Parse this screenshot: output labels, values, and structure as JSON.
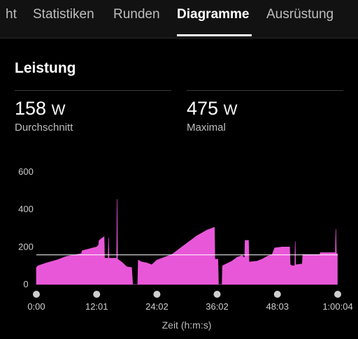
{
  "tabs": [
    {
      "label": "ht",
      "active": false
    },
    {
      "label": "Statistiken",
      "active": false
    },
    {
      "label": "Runden",
      "active": false
    },
    {
      "label": "Diagramme",
      "active": true
    },
    {
      "label": "Ausrüstung",
      "active": false
    }
  ],
  "card": {
    "title": "Leistung"
  },
  "stats": {
    "average": {
      "value": "158",
      "unit": "W",
      "label": "Durchschnitt"
    },
    "maximum": {
      "value": "475",
      "unit": "W",
      "label": "Maximal"
    }
  },
  "colors": {
    "series": "#e957d9",
    "background": "#000000",
    "reference_line": "#ffffff"
  },
  "chart_data": {
    "type": "area",
    "xlabel": "Zeit (h:m:s)",
    "ylabel": "",
    "ylim": [
      0,
      600
    ],
    "yticks": [
      0,
      200,
      400,
      600
    ],
    "xtick_labels": [
      "0:00",
      "12:01",
      "24:02",
      "36:02",
      "48:03",
      "1:00:04"
    ],
    "xtick_minutes": [
      0,
      12.02,
      24.03,
      36.03,
      48.05,
      60.07
    ],
    "xlim_minutes": [
      0,
      60.07
    ],
    "reference_line": 158,
    "series": [
      {
        "points": [
          [
            0,
            90
          ],
          [
            0.3,
            100
          ],
          [
            2,
            115
          ],
          [
            4,
            130
          ],
          [
            6,
            150
          ],
          [
            8,
            160
          ],
          [
            9,
            165
          ],
          [
            9.1,
            180
          ],
          [
            12,
            200
          ],
          [
            12.4,
            210
          ],
          [
            12.5,
            235
          ],
          [
            13,
            245
          ],
          [
            13.5,
            255
          ],
          [
            13.6,
            140
          ],
          [
            14.3,
            140
          ],
          [
            14.4,
            250
          ],
          [
            14.5,
            140
          ],
          [
            16,
            140
          ],
          [
            16.1,
            455
          ],
          [
            16.2,
            135
          ],
          [
            17,
            120
          ],
          [
            18,
            95
          ],
          [
            19,
            90
          ],
          [
            19.2,
            0
          ],
          [
            20.2,
            0
          ],
          [
            20.3,
            130
          ],
          [
            21,
            120
          ],
          [
            22,
            115
          ],
          [
            23,
            105
          ],
          [
            24,
            130
          ],
          [
            25,
            140
          ],
          [
            26,
            150
          ],
          [
            27,
            160
          ],
          [
            28,
            180
          ],
          [
            29,
            200
          ],
          [
            30,
            220
          ],
          [
            31,
            240
          ],
          [
            32,
            260
          ],
          [
            33,
            275
          ],
          [
            34,
            290
          ],
          [
            35,
            300
          ],
          [
            35.5,
            305
          ],
          [
            35.6,
            135
          ],
          [
            36.2,
            135
          ],
          [
            36.3,
            0
          ],
          [
            37,
            0
          ],
          [
            37.1,
            100
          ],
          [
            39,
            125
          ],
          [
            40,
            145
          ],
          [
            41,
            155
          ],
          [
            41.5,
            140
          ],
          [
            41.6,
            235
          ],
          [
            42.3,
            235
          ],
          [
            42.4,
            120
          ],
          [
            44,
            125
          ],
          [
            45,
            135
          ],
          [
            46,
            150
          ],
          [
            47,
            160
          ],
          [
            47.5,
            195
          ],
          [
            49,
            200
          ],
          [
            50.5,
            200
          ],
          [
            50.6,
            105
          ],
          [
            51,
            100
          ],
          [
            51.5,
            100
          ],
          [
            51.6,
            230
          ],
          [
            51.7,
            105
          ],
          [
            53,
            110
          ],
          [
            53.1,
            160
          ],
          [
            56.5,
            160
          ],
          [
            56.6,
            170
          ],
          [
            58.5,
            170
          ],
          [
            59.6,
            170
          ],
          [
            59.7,
            295
          ],
          [
            59.8,
            165
          ],
          [
            60,
            165
          ]
        ]
      }
    ]
  }
}
